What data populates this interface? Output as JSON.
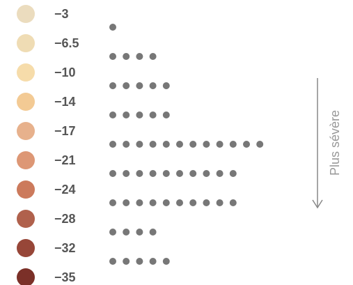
{
  "chart_data": {
    "type": "dot",
    "thresholds": [
      {
        "value": -3,
        "label": "−3",
        "color": "#ebdcbe"
      },
      {
        "value": -6.5,
        "label": "−6.5",
        "color": "#efdcb4"
      },
      {
        "value": -10,
        "label": "−10",
        "color": "#f6dcaa"
      },
      {
        "value": -14,
        "label": "−14",
        "color": "#f3ca94"
      },
      {
        "value": -17,
        "label": "−17",
        "color": "#e7b18c"
      },
      {
        "value": -21,
        "label": "−21",
        "color": "#dd9775"
      },
      {
        "value": -24,
        "label": "−24",
        "color": "#cc7a5c"
      },
      {
        "value": -28,
        "label": "−28",
        "color": "#b0614c"
      },
      {
        "value": -32,
        "label": "−32",
        "color": "#974638"
      },
      {
        "value": -35,
        "label": "−35",
        "color": "#7b3028"
      }
    ],
    "values": [
      1,
      4,
      5,
      5,
      12,
      10,
      10,
      4,
      5
    ],
    "color": "#777777",
    "annotation": "Plus sévère"
  }
}
